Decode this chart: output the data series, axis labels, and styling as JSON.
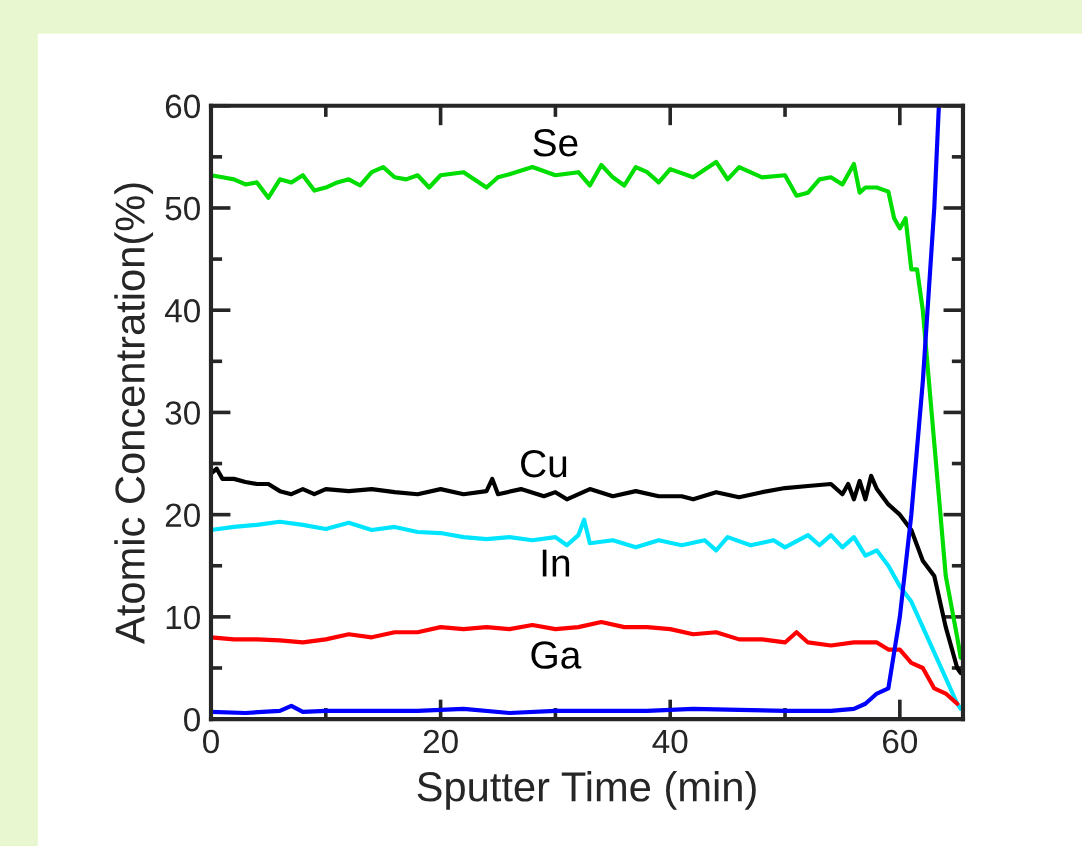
{
  "chart_data": {
    "type": "line",
    "xlabel": "Sputter Time (min)",
    "ylabel": "Atomic Concentration(%)",
    "xlim": [
      0,
      65.5
    ],
    "xticks": [
      0,
      20,
      40,
      60
    ],
    "ylim": [
      0,
      60
    ],
    "yticks": [
      0,
      10,
      20,
      30,
      40,
      50,
      60
    ],
    "grid": false,
    "legend": false,
    "marker": "none",
    "line_style": "solid",
    "series": [
      {
        "name": "Se",
        "color": "#00dd00",
        "x": [
          0,
          1,
          2,
          3,
          4,
          5,
          6,
          7,
          8,
          9,
          10,
          11,
          12,
          13,
          14,
          15,
          16,
          17,
          18,
          19,
          20,
          22,
          24,
          25,
          26,
          28,
          30,
          32,
          33,
          34,
          35,
          36,
          37,
          38,
          39,
          40,
          42,
          44,
          45,
          46,
          48,
          50,
          51,
          52,
          53,
          54,
          55,
          56,
          56.5,
          57,
          58,
          59,
          59.5,
          60,
          60.5,
          61,
          61.5,
          62,
          63,
          64,
          65,
          65.3
        ],
        "values": [
          53.2,
          53,
          52.8,
          52.3,
          52.5,
          51,
          52.8,
          52.5,
          53.2,
          51.7,
          52,
          52.5,
          52.8,
          52.2,
          53.5,
          54,
          53,
          52.8,
          53.2,
          52,
          53.2,
          53.5,
          52,
          53,
          53.3,
          54,
          53.2,
          53.5,
          52.2,
          54.2,
          53,
          52.2,
          54,
          53.5,
          52.5,
          53.8,
          53,
          54.5,
          52.8,
          54,
          53,
          53.2,
          51.2,
          51.5,
          52.8,
          53,
          52.3,
          54.3,
          51.5,
          52,
          52,
          51.6,
          49,
          48,
          49,
          44,
          44,
          40,
          27,
          14,
          8,
          6
        ]
      },
      {
        "name": "Cu",
        "color": "#000000",
        "x": [
          0,
          0.5,
          1,
          2,
          3,
          4,
          5,
          6,
          7,
          8,
          9,
          10,
          12,
          14,
          16,
          18,
          20,
          22,
          24,
          24.5,
          25,
          27,
          29,
          30,
          31,
          33,
          35,
          37,
          39,
          41,
          42,
          44,
          46,
          48,
          50,
          52,
          54,
          55,
          55.5,
          56,
          56.5,
          57,
          57.5,
          58,
          59,
          60,
          61,
          62,
          63,
          64,
          65,
          65.3
        ],
        "values": [
          24,
          24.5,
          23.5,
          23.5,
          23.2,
          23,
          23,
          22.3,
          22,
          22.5,
          22,
          22.5,
          22.3,
          22.5,
          22.2,
          22,
          22.5,
          22,
          22.3,
          23.5,
          22,
          22.5,
          21.8,
          22.2,
          21.5,
          22.5,
          21.8,
          22.3,
          21.8,
          21.8,
          21.5,
          22.2,
          21.7,
          22.2,
          22.6,
          22.8,
          23,
          22,
          23,
          21.5,
          23.3,
          21.5,
          23.8,
          22.5,
          21,
          20,
          18.5,
          15.5,
          14,
          9,
          5,
          4.5
        ]
      },
      {
        "name": "In",
        "color": "#00e5ff",
        "x": [
          0,
          2,
          4,
          6,
          8,
          10,
          12,
          14,
          16,
          18,
          20,
          22,
          24,
          26,
          28,
          30,
          31,
          32,
          32.5,
          33,
          35,
          37,
          39,
          41,
          43,
          44,
          45,
          47,
          49,
          50,
          52,
          53,
          54,
          55,
          56,
          57,
          58,
          59,
          60,
          61,
          62,
          63,
          64,
          65,
          65.3
        ],
        "values": [
          18.5,
          18.8,
          19,
          19.3,
          19,
          18.6,
          19.2,
          18.5,
          18.8,
          18.3,
          18.2,
          17.8,
          17.6,
          17.8,
          17.5,
          17.8,
          17,
          18,
          19.5,
          17.2,
          17.5,
          16.8,
          17.5,
          17,
          17.5,
          16.5,
          17.8,
          17,
          17.5,
          16.8,
          18,
          17,
          18,
          16.8,
          17.8,
          16,
          16.5,
          15,
          13,
          11.5,
          9,
          6.5,
          4,
          1.5,
          1
        ]
      },
      {
        "name": "Ga",
        "color": "#ff0000",
        "x": [
          0,
          2,
          4,
          6,
          8,
          10,
          12,
          14,
          16,
          18,
          20,
          22,
          24,
          26,
          28,
          30,
          32,
          34,
          36,
          38,
          40,
          42,
          44,
          46,
          48,
          50,
          51,
          52,
          54,
          56,
          58,
          59,
          60,
          61,
          62,
          63,
          64,
          65
        ],
        "values": [
          8,
          7.8,
          7.8,
          7.7,
          7.5,
          7.8,
          8.3,
          8,
          8.5,
          8.5,
          9,
          8.8,
          9,
          8.8,
          9.2,
          8.8,
          9,
          9.5,
          9,
          9,
          8.8,
          8.3,
          8.5,
          7.8,
          7.8,
          7.5,
          8.5,
          7.5,
          7.2,
          7.5,
          7.5,
          6.8,
          6.8,
          5.5,
          5,
          3,
          2.5,
          1.5
        ]
      },
      {
        "color": "#0000ff",
        "x": [
          0,
          3,
          6,
          7,
          8,
          10,
          14,
          18,
          22,
          26,
          30,
          34,
          38,
          42,
          46,
          50,
          54,
          56,
          57,
          58,
          59,
          60,
          61,
          62,
          63,
          63.4
        ],
        "values": [
          0.7,
          0.6,
          0.8,
          1.3,
          0.7,
          0.8,
          0.8,
          0.8,
          1,
          0.6,
          0.8,
          0.8,
          0.8,
          1,
          0.9,
          0.8,
          0.8,
          1,
          1.5,
          2.5,
          3,
          10,
          20,
          33,
          50,
          60
        ]
      }
    ]
  }
}
